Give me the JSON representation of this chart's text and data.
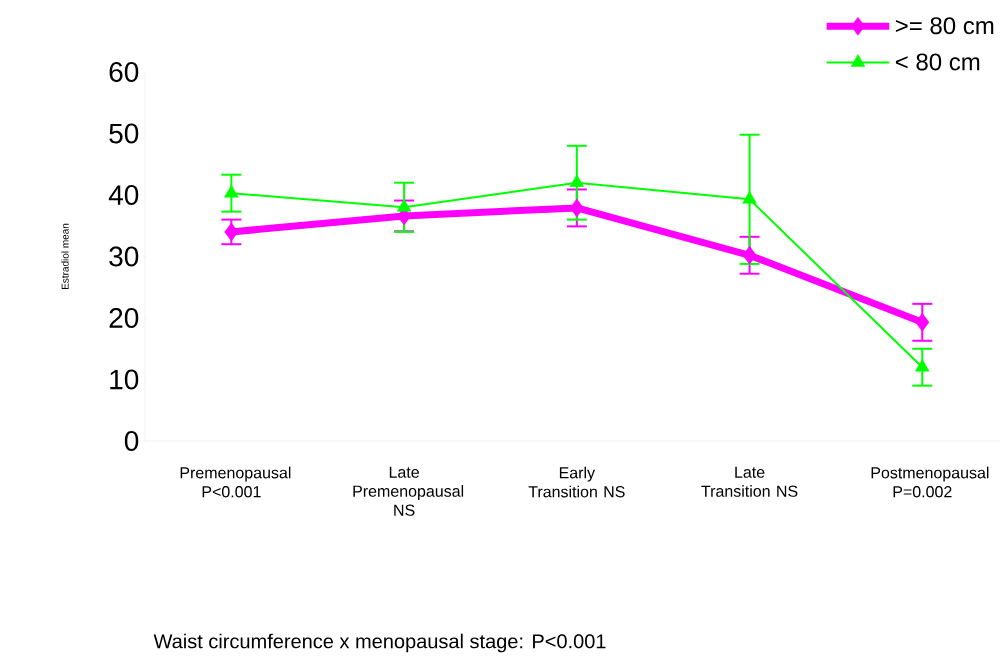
{
  "chart_data": {
    "type": "line",
    "ylabel": "Estradiol mean",
    "categories": [
      "Premenopausal P<0.001",
      "Late Premenopausal NS",
      "Early Transition NS",
      "Late Transition NS",
      "Postmenopausal P=0.002"
    ],
    "series": [
      {
        "name": ">= 80 cm",
        "color": "#ff00ff",
        "marker": "diamond",
        "values": [
          34,
          36.6,
          37.9,
          30.2,
          19.3
        ],
        "errors": [
          2,
          2.5,
          3,
          3,
          3
        ]
      },
      {
        "name": "< 80 cm",
        "color": "#00ff00",
        "marker": "triangle",
        "values": [
          40.3,
          38,
          42,
          39.3,
          12
        ],
        "errors": [
          3,
          4,
          6,
          10.5,
          3
        ]
      }
    ],
    "ylim": [
      0,
      60
    ],
    "yticks": [
      0,
      10,
      20,
      30,
      40,
      50,
      60
    ],
    "legend": "top right",
    "annotations": [
      "Waist circumference x menopausal stage:  P<0.001"
    ]
  }
}
